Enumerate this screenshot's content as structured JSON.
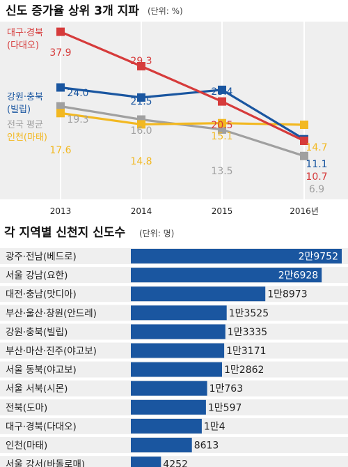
{
  "chart_data": [
    {
      "type": "line",
      "title": "신도 증가율 상위 3개 지파",
      "unit_note": "(단위: %)",
      "x": [
        "2013",
        "2014",
        "2015",
        "2016년"
      ],
      "ylim": [
        0,
        40
      ],
      "series": [
        {
          "name": "대구·경북",
          "sub": "(다대오)",
          "color": "#d63b3b",
          "values": [
            37.9,
            29.3,
            20.5,
            10.7
          ],
          "labels": [
            "37.9",
            "29.3",
            "20.5",
            "10.7"
          ]
        },
        {
          "name": "강원·충북",
          "sub": "(빌립)",
          "color": "#1a56a0",
          "values": [
            24.0,
            21.5,
            23.4,
            11.1
          ],
          "labels": [
            "24.0",
            "21.5",
            "23.4",
            "11.1"
          ]
        },
        {
          "name": "전국 평균",
          "sub": "",
          "color": "#a0a0a0",
          "values": [
            19.3,
            16.0,
            13.5,
            6.9
          ],
          "labels": [
            "19.3",
            "16.0",
            "13.5",
            "6.9"
          ]
        },
        {
          "name": "인천",
          "sub": "(마태)",
          "color": "#f2b821",
          "values": [
            17.6,
            14.8,
            15.1,
            14.7
          ],
          "labels": [
            "17.6",
            "14.8",
            "15.1",
            "14.7"
          ]
        }
      ]
    },
    {
      "type": "bar",
      "orientation": "horizontal",
      "title": "각 지역별 신천지 신도수",
      "unit_note": "(단위: 명)",
      "bar_color": "#1a56a0",
      "categories": [
        "광주·전남(베드로)",
        "서울 강남(요한)",
        "대전·충남(맛디아)",
        "부산·울산·창원(안드레)",
        "강원·충북(빌립)",
        "부산·마산·진주(야고보)",
        "서울 동북(야고보)",
        "서울 서북(시몬)",
        "전북(도마)",
        "대구·경북(다대오)",
        "인천(마태)",
        "서울 강서(바돌로매)"
      ],
      "values": [
        29752,
        26928,
        18973,
        13525,
        13335,
        13171,
        12862,
        10763,
        10597,
        10004,
        8613,
        4252
      ],
      "labels": [
        "2만9752",
        "2만6928",
        "1만8973",
        "1만3525",
        "1만3335",
        "1만3171",
        "1만2862",
        "1만763",
        "1만597",
        "1만4",
        "8613",
        "4252"
      ]
    }
  ]
}
